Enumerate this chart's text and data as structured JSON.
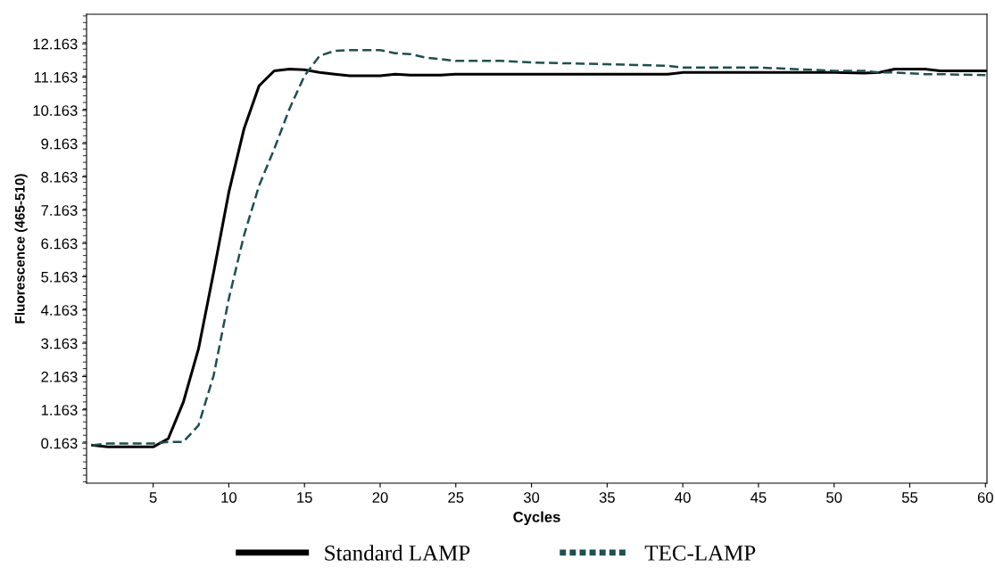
{
  "chart_data": {
    "type": "line",
    "xlabel": "Cycles",
    "ylabel": "Fluorescence (465-510)",
    "x": [
      1,
      2,
      3,
      4,
      5,
      6,
      7,
      8,
      9,
      10,
      11,
      12,
      13,
      14,
      15,
      16,
      17,
      18,
      19,
      20,
      21,
      22,
      23,
      24,
      25,
      28,
      30,
      35,
      39,
      40,
      45,
      50,
      52,
      53,
      54,
      56,
      57,
      60
    ],
    "series": [
      {
        "name": "Standard LAMP",
        "color": "#000000",
        "line_style": "solid",
        "values": [
          0.1,
          0.05,
          0.05,
          0.05,
          0.05,
          0.3,
          1.4,
          3.0,
          5.3,
          7.7,
          9.6,
          10.9,
          11.35,
          11.4,
          11.38,
          11.3,
          11.25,
          11.2,
          11.2,
          11.2,
          11.25,
          11.22,
          11.22,
          11.22,
          11.25,
          11.25,
          11.25,
          11.25,
          11.25,
          11.3,
          11.3,
          11.3,
          11.28,
          11.3,
          11.4,
          11.4,
          11.35,
          11.35
        ]
      },
      {
        "name": "TEC-LAMP",
        "color": "#1f4f4f",
        "line_style": "dashed",
        "values": [
          0.1,
          0.15,
          0.15,
          0.15,
          0.15,
          0.2,
          0.2,
          0.7,
          2.2,
          4.5,
          6.4,
          7.9,
          9.0,
          10.2,
          11.2,
          11.8,
          11.95,
          11.97,
          11.97,
          11.97,
          11.88,
          11.85,
          11.75,
          11.7,
          11.65,
          11.65,
          11.6,
          11.55,
          11.5,
          11.45,
          11.45,
          11.35,
          11.35,
          11.3,
          11.3,
          11.25,
          11.25,
          11.22
        ]
      }
    ],
    "xlim": [
      0.6,
      60.1
    ],
    "xticks": [
      5,
      10,
      15,
      20,
      25,
      30,
      35,
      40,
      45,
      50,
      55,
      60
    ],
    "ylim": [
      -1.04,
      13.05
    ],
    "yticks": [
      0.163,
      1.163,
      2.163,
      3.163,
      4.163,
      5.163,
      6.163,
      7.163,
      8.163,
      9.163,
      10.163,
      11.163,
      12.163
    ],
    "grid": false,
    "legend": "bottom",
    "marker": "none"
  }
}
